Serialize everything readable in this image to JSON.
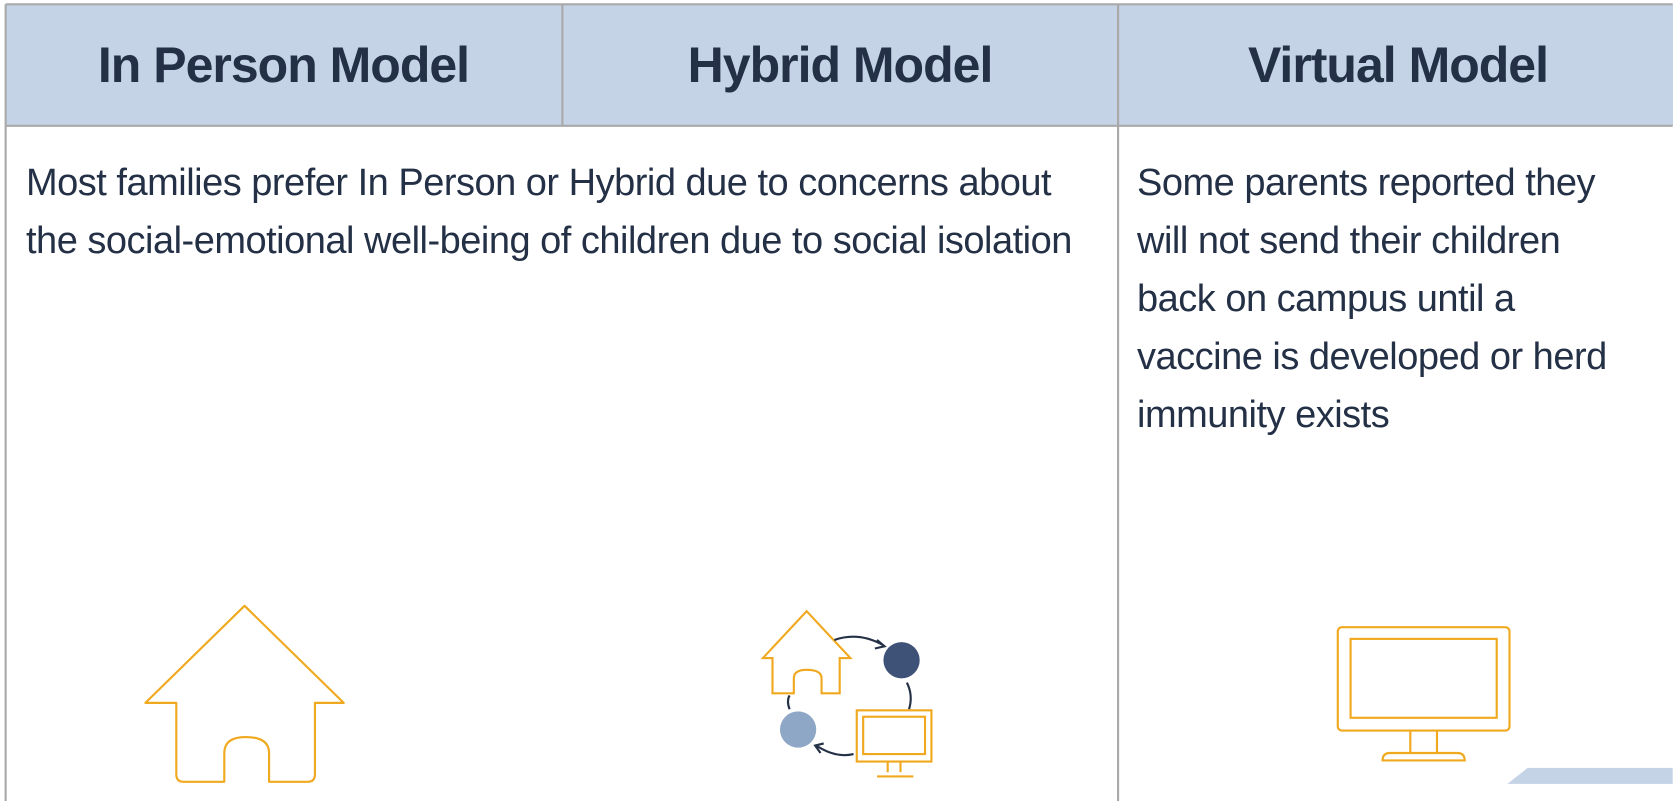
{
  "table": {
    "headers": [
      "In Person Model",
      "Hybrid Model",
      "Virtual Model"
    ],
    "rows": [
      [
        "Most families prefer In Person or Hybrid due to concerns about the social-emotional well-being of children due to social isolation",
        "Some parents reported they will not send their children back on campus until a vaccine is developed or herd immunity exists"
      ]
    ]
  }
}
